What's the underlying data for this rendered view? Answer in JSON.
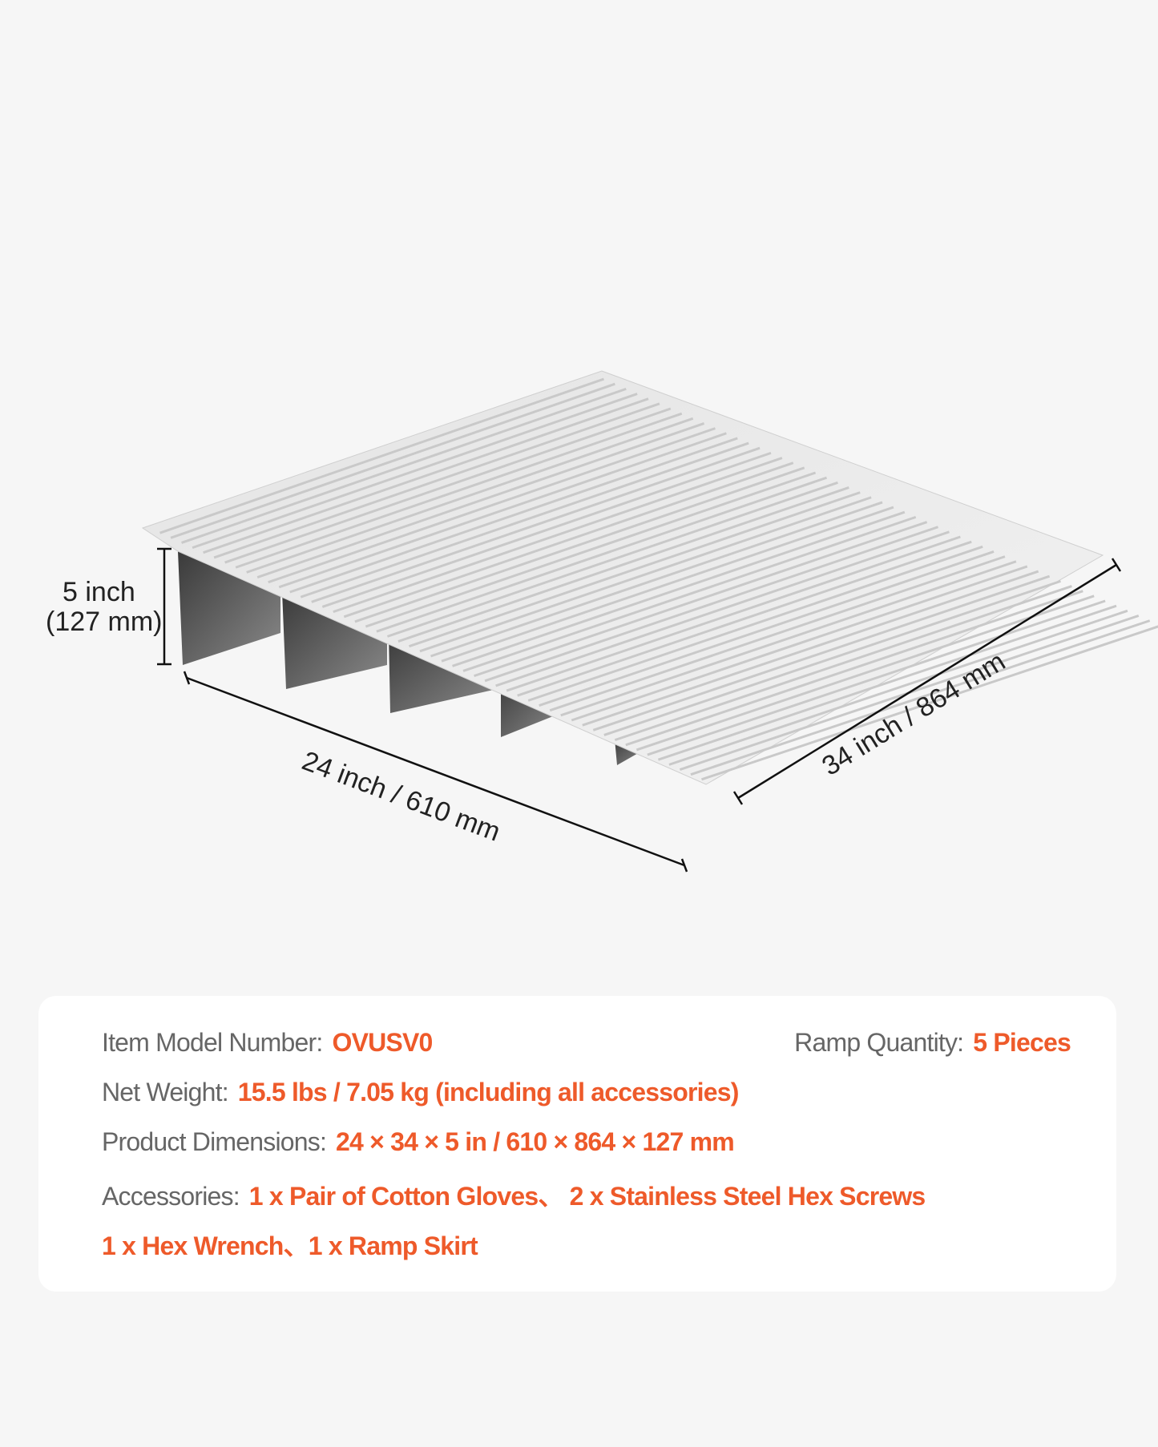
{
  "dimensions": {
    "height_label": "5 inch",
    "height_metric": "(127 mm)",
    "width_label": "24 inch / 610 mm",
    "length_label": "34 inch / 864 mm"
  },
  "specs": {
    "model_label": "Item Model Number:",
    "model_value": "OVUSV0",
    "quantity_label": "Ramp Quantity:",
    "quantity_value": "5 Pieces",
    "weight_label": "Net Weight:",
    "weight_value": "15.5 lbs / 7.05 kg (including all accessories)",
    "dimensions_label": "Product Dimensions:",
    "dimensions_value": "24 × 34 × 5 in / 610 × 864 × 127 mm",
    "accessories_label": "Accessories:",
    "accessories_value_line1": "1 x Pair of Cotton Gloves、 2 x Stainless Steel Hex Screws",
    "accessories_value_line2": "1 x Hex Wrench、1 x Ramp Skirt"
  },
  "colors": {
    "accent": "#ee5a2a",
    "label": "#666666",
    "background": "#f6f6f6"
  }
}
